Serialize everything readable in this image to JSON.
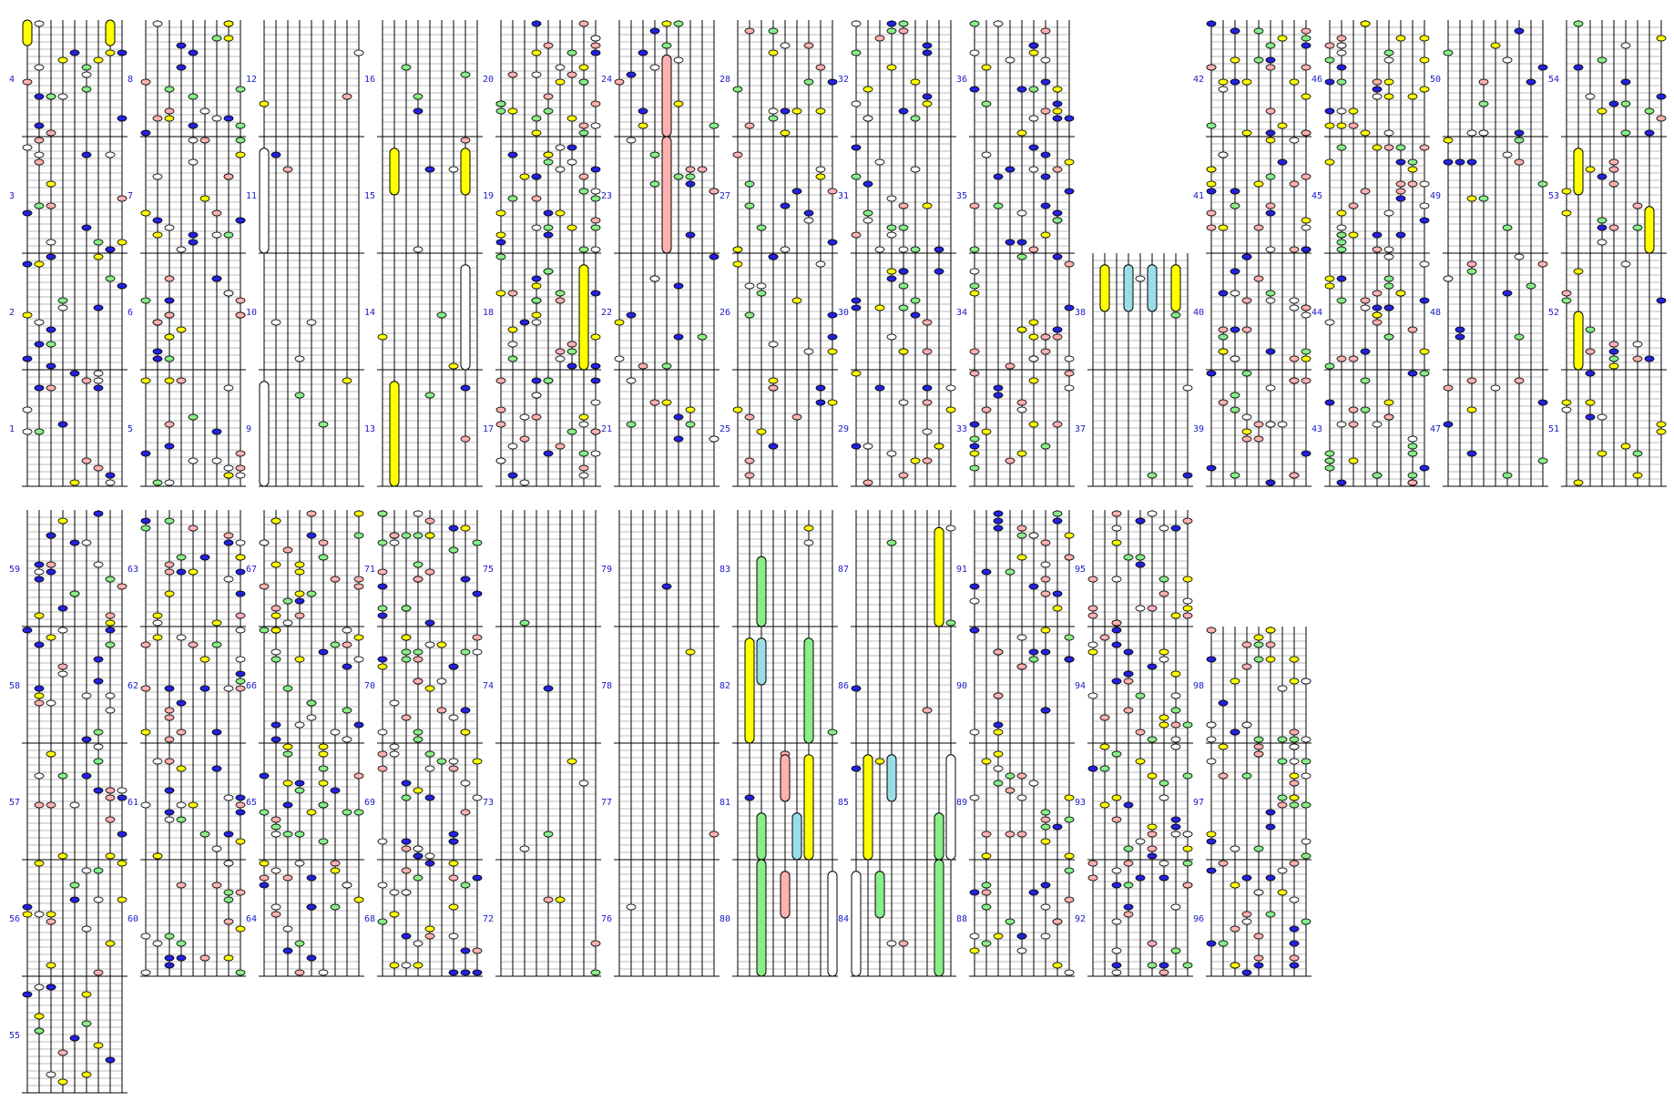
{
  "measures": [
    {
      "n": 1,
      "grid": 0,
      "col": 0,
      "row": 3
    },
    {
      "n": 2,
      "grid": 0,
      "col": 0,
      "row": 2
    },
    {
      "n": 3,
      "grid": 0,
      "col": 0,
      "row": 1
    },
    {
      "n": 4,
      "grid": 0,
      "col": 0,
      "row": 0
    },
    {
      "n": 5,
      "grid": 0,
      "col": 1,
      "row": 3
    },
    {
      "n": 6,
      "grid": 0,
      "col": 1,
      "row": 2
    },
    {
      "n": 7,
      "grid": 0,
      "col": 1,
      "row": 1
    },
    {
      "n": 8,
      "grid": 0,
      "col": 1,
      "row": 0
    },
    {
      "n": 9,
      "grid": 0,
      "col": 2,
      "row": 3
    },
    {
      "n": 10,
      "grid": 0,
      "col": 2,
      "row": 2
    },
    {
      "n": 11,
      "grid": 0,
      "col": 2,
      "row": 1
    },
    {
      "n": 12,
      "grid": 0,
      "col": 2,
      "row": 0
    },
    {
      "n": 13,
      "grid": 0,
      "col": 3,
      "row": 3
    },
    {
      "n": 14,
      "grid": 0,
      "col": 3,
      "row": 2
    },
    {
      "n": 15,
      "grid": 0,
      "col": 3,
      "row": 1
    },
    {
      "n": 16,
      "grid": 0,
      "col": 3,
      "row": 0
    },
    {
      "n": 17,
      "grid": 0,
      "col": 4,
      "row": 3
    },
    {
      "n": 18,
      "grid": 0,
      "col": 4,
      "row": 2
    },
    {
      "n": 19,
      "grid": 0,
      "col": 4,
      "row": 1
    },
    {
      "n": 20,
      "grid": 0,
      "col": 4,
      "row": 0
    },
    {
      "n": 21,
      "grid": 0,
      "col": 5,
      "row": 3
    },
    {
      "n": 22,
      "grid": 0,
      "col": 5,
      "row": 2
    },
    {
      "n": 23,
      "grid": 0,
      "col": 5,
      "row": 1
    },
    {
      "n": 24,
      "grid": 0,
      "col": 5,
      "row": 0
    },
    {
      "n": 25,
      "grid": 0,
      "col": 6,
      "row": 3
    },
    {
      "n": 26,
      "grid": 0,
      "col": 6,
      "row": 2
    },
    {
      "n": 27,
      "grid": 0,
      "col": 6,
      "row": 1
    },
    {
      "n": 28,
      "grid": 0,
      "col": 6,
      "row": 0
    },
    {
      "n": 29,
      "grid": 0,
      "col": 7,
      "row": 3
    },
    {
      "n": 30,
      "grid": 0,
      "col": 7,
      "row": 2
    },
    {
      "n": 31,
      "grid": 0,
      "col": 7,
      "row": 1
    },
    {
      "n": 32,
      "grid": 0,
      "col": 7,
      "row": 0
    },
    {
      "n": 33,
      "grid": 0,
      "col": 8,
      "row": 3
    },
    {
      "n": 34,
      "grid": 0,
      "col": 8,
      "row": 2
    },
    {
      "n": 35,
      "grid": 0,
      "col": 8,
      "row": 1
    },
    {
      "n": 36,
      "grid": 0,
      "col": 8,
      "row": 0
    },
    {
      "n": 37,
      "grid": 0,
      "col": 9,
      "row": 3
    },
    {
      "n": 38,
      "grid": 0,
      "col": 9,
      "row": 2
    },
    {
      "n": 39,
      "grid": 0,
      "col": 10,
      "row": 3
    },
    {
      "n": 40,
      "grid": 0,
      "col": 10,
      "row": 2
    },
    {
      "n": 41,
      "grid": 0,
      "col": 10,
      "row": 1
    },
    {
      "n": 42,
      "grid": 0,
      "col": 10,
      "row": 0
    },
    {
      "n": 43,
      "grid": 0,
      "col": 11,
      "row": 3
    },
    {
      "n": 44,
      "grid": 0,
      "col": 11,
      "row": 2
    },
    {
      "n": 45,
      "grid": 0,
      "col": 11,
      "row": 1
    },
    {
      "n": 46,
      "grid": 0,
      "col": 11,
      "row": 0
    },
    {
      "n": 47,
      "grid": 0,
      "col": 12,
      "row": 3
    },
    {
      "n": 48,
      "grid": 0,
      "col": 12,
      "row": 2
    },
    {
      "n": 49,
      "grid": 0,
      "col": 12,
      "row": 1
    },
    {
      "n": 50,
      "grid": 0,
      "col": 12,
      "row": 0
    },
    {
      "n": 51,
      "grid": 0,
      "col": 13,
      "row": 3
    },
    {
      "n": 52,
      "grid": 0,
      "col": 13,
      "row": 2
    },
    {
      "n": 53,
      "grid": 0,
      "col": 13,
      "row": 1
    },
    {
      "n": 54,
      "grid": 0,
      "col": 13,
      "row": 0
    },
    {
      "n": 55,
      "grid": 1,
      "col": 0,
      "row": 4
    },
    {
      "n": 56,
      "grid": 1,
      "col": 0,
      "row": 3
    },
    {
      "n": 57,
      "grid": 1,
      "col": 0,
      "row": 2
    },
    {
      "n": 58,
      "grid": 1,
      "col": 0,
      "row": 1
    },
    {
      "n": 59,
      "grid": 1,
      "col": 0,
      "row": 0
    },
    {
      "n": 60,
      "grid": 1,
      "col": 1,
      "row": 3
    },
    {
      "n": 61,
      "grid": 1,
      "col": 1,
      "row": 2
    },
    {
      "n": 62,
      "grid": 1,
      "col": 1,
      "row": 1
    },
    {
      "n": 63,
      "grid": 1,
      "col": 1,
      "row": 0
    },
    {
      "n": 64,
      "grid": 1,
      "col": 2,
      "row": 3
    },
    {
      "n": 65,
      "grid": 1,
      "col": 2,
      "row": 2
    },
    {
      "n": 66,
      "grid": 1,
      "col": 2,
      "row": 1
    },
    {
      "n": 67,
      "grid": 1,
      "col": 2,
      "row": 0
    },
    {
      "n": 68,
      "grid": 1,
      "col": 3,
      "row": 3
    },
    {
      "n": 69,
      "grid": 1,
      "col": 3,
      "row": 2
    },
    {
      "n": 70,
      "grid": 1,
      "col": 3,
      "row": 1
    },
    {
      "n": 71,
      "grid": 1,
      "col": 3,
      "row": 0
    },
    {
      "n": 72,
      "grid": 1,
      "col": 4,
      "row": 3
    },
    {
      "n": 73,
      "grid": 1,
      "col": 4,
      "row": 2
    },
    {
      "n": 74,
      "grid": 1,
      "col": 4,
      "row": 1
    },
    {
      "n": 75,
      "grid": 1,
      "col": 4,
      "row": 0
    },
    {
      "n": 76,
      "grid": 1,
      "col": 5,
      "row": 3
    },
    {
      "n": 77,
      "grid": 1,
      "col": 5,
      "row": 2
    },
    {
      "n": 78,
      "grid": 1,
      "col": 5,
      "row": 1
    },
    {
      "n": 79,
      "grid": 1,
      "col": 5,
      "row": 0
    },
    {
      "n": 80,
      "grid": 1,
      "col": 6,
      "row": 3
    },
    {
      "n": 81,
      "grid": 1,
      "col": 6,
      "row": 2
    },
    {
      "n": 82,
      "grid": 1,
      "col": 6,
      "row": 1
    },
    {
      "n": 83,
      "grid": 1,
      "col": 6,
      "row": 0
    },
    {
      "n": 84,
      "grid": 1,
      "col": 7,
      "row": 3
    },
    {
      "n": 85,
      "grid": 1,
      "col": 7,
      "row": 2
    },
    {
      "n": 86,
      "grid": 1,
      "col": 7,
      "row": 1
    },
    {
      "n": 87,
      "grid": 1,
      "col": 7,
      "row": 0
    },
    {
      "n": 88,
      "grid": 1,
      "col": 8,
      "row": 3
    },
    {
      "n": 89,
      "grid": 1,
      "col": 8,
      "row": 2
    },
    {
      "n": 90,
      "grid": 1,
      "col": 8,
      "row": 1
    },
    {
      "n": 91,
      "grid": 1,
      "col": 8,
      "row": 0
    },
    {
      "n": 92,
      "grid": 1,
      "col": 9,
      "row": 3
    },
    {
      "n": 93,
      "grid": 1,
      "col": 9,
      "row": 2
    },
    {
      "n": 94,
      "grid": 1,
      "col": 9,
      "row": 1
    },
    {
      "n": 95,
      "grid": 1,
      "col": 9,
      "row": 0
    },
    {
      "n": 96,
      "grid": 1,
      "col": 10,
      "row": 3
    },
    {
      "n": 97,
      "grid": 1,
      "col": 10,
      "row": 2
    },
    {
      "n": 98,
      "grid": 1,
      "col": 10,
      "row": 1
    }
  ],
  "colors": {
    "number_text": "#1a1acc",
    "staff_line": "#000000",
    "beat_line": "#bbbbbb",
    "note_white": "#ffffff",
    "note_yellow": "#ffff00",
    "note_green": "#88ee88",
    "note_pink": "#ffb0b0",
    "note_blue": "#2222dd",
    "note_cyan": "#99dde8"
  },
  "long_notes": [
    {
      "m": 4,
      "lane": 0,
      "color": "note_yellow",
      "start": 0.78,
      "end": 1.0
    },
    {
      "m": 4,
      "lane": 7,
      "color": "note_yellow",
      "start": 0.78,
      "end": 1.0
    },
    {
      "m": 11,
      "lane": 0,
      "color": "note_white",
      "start": 0.0,
      "end": 0.9
    },
    {
      "m": 15,
      "lane": 1,
      "color": "note_yellow",
      "start": 0.5,
      "end": 0.9
    },
    {
      "m": 15,
      "lane": 7,
      "color": "note_yellow",
      "start": 0.5,
      "end": 0.9
    },
    {
      "m": 14,
      "lane": 7,
      "color": "note_white",
      "start": 0.0,
      "end": 0.9
    },
    {
      "m": 18,
      "lane": 7,
      "color": "note_yellow",
      "start": 0.0,
      "end": 0.9
    },
    {
      "m": 13,
      "lane": 1,
      "color": "note_yellow",
      "start": 0.0,
      "end": 0.9
    },
    {
      "m": 9,
      "lane": 0,
      "color": "note_white",
      "start": 0.0,
      "end": 0.9
    },
    {
      "m": 23,
      "lane": 4,
      "color": "note_pink",
      "start": 0.0,
      "end": 1.0
    },
    {
      "m": 24,
      "lane": 4,
      "color": "note_pink",
      "start": 0.0,
      "end": 0.7
    },
    {
      "m": 38,
      "lane": 1,
      "color": "note_yellow",
      "start": 0.5,
      "end": 0.9
    },
    {
      "m": 38,
      "lane": 3,
      "color": "note_cyan",
      "start": 0.5,
      "end": 0.9
    },
    {
      "m": 38,
      "lane": 5,
      "color": "note_cyan",
      "start": 0.5,
      "end": 0.9
    },
    {
      "m": 38,
      "lane": 7,
      "color": "note_yellow",
      "start": 0.5,
      "end": 0.9
    },
    {
      "m": 53,
      "lane": 1,
      "color": "note_yellow",
      "start": 0.5,
      "end": 0.9
    },
    {
      "m": 53,
      "lane": 7,
      "color": "note_yellow",
      "start": 0.0,
      "end": 0.4
    },
    {
      "m": 52,
      "lane": 1,
      "color": "note_yellow",
      "start": 0.0,
      "end": 0.5
    },
    {
      "m": 83,
      "lane": 2,
      "color": "note_green",
      "start": 0.0,
      "end": 0.6
    },
    {
      "m": 87,
      "lane": 7,
      "color": "note_yellow",
      "start": 0.0,
      "end": 0.85
    },
    {
      "m": 82,
      "lane": 1,
      "color": "note_yellow",
      "start": 0.0,
      "end": 0.9
    },
    {
      "m": 82,
      "lane": 2,
      "color": "note_cyan",
      "start": 0.5,
      "end": 0.9
    },
    {
      "m": 82,
      "lane": 6,
      "color": "note_green",
      "start": 0.0,
      "end": 0.9
    },
    {
      "m": 81,
      "lane": 4,
      "color": "note_pink",
      "start": 0.5,
      "end": 0.9
    },
    {
      "m": 81,
      "lane": 6,
      "color": "note_yellow",
      "start": 0.0,
      "end": 0.9
    },
    {
      "m": 81,
      "lane": 5,
      "color": "note_cyan",
      "start": 0.0,
      "end": 0.4
    },
    {
      "m": 80,
      "lane": 2,
      "color": "note_green",
      "start": 0.0,
      "end": 1.0
    },
    {
      "m": 81,
      "lane": 2,
      "color": "note_green",
      "start": 0.0,
      "end": 0.4
    },
    {
      "m": 80,
      "lane": 4,
      "color": "note_pink",
      "start": 0.5,
      "end": 0.9
    },
    {
      "m": 80,
      "lane": 8,
      "color": "note_white",
      "start": 0.0,
      "end": 0.9
    },
    {
      "m": 85,
      "lane": 1,
      "color": "note_yellow",
      "start": 0.0,
      "end": 0.9
    },
    {
      "m": 85,
      "lane": 3,
      "color": "note_cyan",
      "start": 0.5,
      "end": 0.9
    },
    {
      "m": 84,
      "lane": 0,
      "color": "note_white",
      "start": 0.0,
      "end": 0.9
    },
    {
      "m": 84,
      "lane": 2,
      "color": "note_green",
      "start": 0.5,
      "end": 0.9
    },
    {
      "m": 84,
      "lane": 7,
      "color": "note_green",
      "start": 0.0,
      "end": 1.0
    },
    {
      "m": 85,
      "lane": 7,
      "color": "note_green",
      "start": 0.0,
      "end": 0.4
    },
    {
      "m": 85,
      "lane": 8,
      "color": "note_white",
      "start": 0.0,
      "end": 0.9
    }
  ],
  "empty_lanes_note": ""
}
